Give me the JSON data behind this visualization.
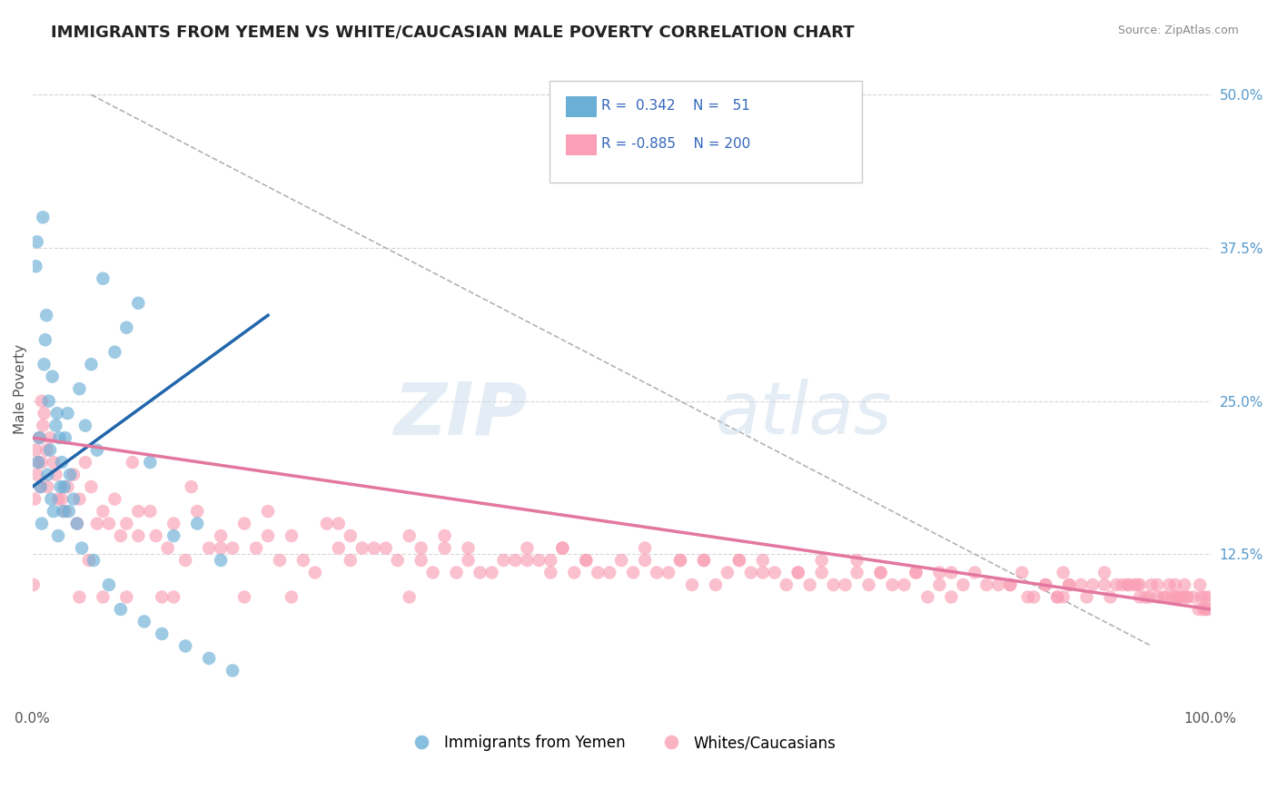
{
  "title": "IMMIGRANTS FROM YEMEN VS WHITE/CAUCASIAN MALE POVERTY CORRELATION CHART",
  "source": "Source: ZipAtlas.com",
  "xlabel": "",
  "ylabel": "Male Poverty",
  "xlim": [
    0,
    100
  ],
  "ylim": [
    0,
    52
  ],
  "xtick_labels": [
    "0.0%",
    "100.0%"
  ],
  "ytick_right_labels": [
    "12.5%",
    "25.0%",
    "37.5%",
    "50.0%"
  ],
  "ytick_right_values": [
    12.5,
    25.0,
    37.5,
    50.0
  ],
  "legend_entries": [
    {
      "label": "Immigrants from Yemen",
      "color": "#a8c8f0",
      "R": "0.342",
      "N": "51"
    },
    {
      "label": "Whites/Caucasians",
      "color": "#f4a0b0",
      "R": "-0.885",
      "N": "200"
    }
  ],
  "blue_scatter_x": [
    0.5,
    0.6,
    0.7,
    0.8,
    1.0,
    1.2,
    1.3,
    1.4,
    1.5,
    1.6,
    1.8,
    2.0,
    2.2,
    2.4,
    2.5,
    2.6,
    2.8,
    3.0,
    3.2,
    3.5,
    4.0,
    4.5,
    5.0,
    5.5,
    6.0,
    7.0,
    8.0,
    9.0,
    10.0,
    12.0,
    14.0,
    16.0,
    0.3,
    0.4,
    0.9,
    1.1,
    1.7,
    2.1,
    2.3,
    2.7,
    3.1,
    3.8,
    4.2,
    5.2,
    6.5,
    7.5,
    9.5,
    11.0,
    13.0,
    15.0,
    17.0
  ],
  "blue_scatter_y": [
    20,
    22,
    18,
    15,
    28,
    32,
    19,
    25,
    21,
    17,
    16,
    23,
    14,
    18,
    20,
    16,
    22,
    24,
    19,
    17,
    26,
    23,
    28,
    21,
    35,
    29,
    31,
    33,
    20,
    14,
    15,
    12,
    36,
    38,
    40,
    30,
    27,
    24,
    22,
    18,
    16,
    15,
    13,
    12,
    10,
    8,
    7,
    6,
    5,
    4,
    3
  ],
  "pink_scatter_x": [
    0.3,
    0.4,
    0.5,
    0.6,
    0.7,
    0.8,
    0.9,
    1.0,
    1.2,
    1.5,
    1.8,
    2.0,
    2.5,
    3.0,
    3.5,
    4.0,
    4.5,
    5.0,
    6.0,
    7.0,
    8.0,
    9.0,
    10.0,
    12.0,
    14.0,
    16.0,
    18.0,
    20.0,
    22.0,
    25.0,
    27.0,
    30.0,
    32.0,
    35.0,
    37.0,
    40.0,
    42.0,
    45.0,
    47.0,
    50.0,
    52.0,
    55.0,
    57.0,
    60.0,
    62.0,
    65.0,
    67.0,
    70.0,
    72.0,
    75.0,
    77.0,
    80.0,
    82.0,
    84.0,
    86.0,
    88.0,
    89.0,
    90.0,
    91.0,
    92.0,
    93.0,
    94.0,
    94.5,
    95.0,
    95.5,
    96.0,
    96.5,
    97.0,
    97.5,
    98.0,
    98.5,
    99.0,
    99.2,
    99.4,
    99.6,
    99.8,
    1.3,
    2.8,
    6.5,
    10.5,
    15.0,
    19.0,
    23.0,
    28.0,
    33.0,
    38.0,
    43.0,
    48.0,
    53.0,
    58.0,
    63.0,
    68.0,
    73.0,
    78.0,
    83.0,
    87.0,
    91.5,
    93.5,
    96.8,
    99.9,
    0.2,
    3.8,
    7.5,
    11.5,
    16.0,
    21.0,
    26.0,
    31.0,
    36.0,
    41.0,
    46.0,
    51.0,
    56.0,
    61.0,
    66.0,
    71.0,
    76.0,
    81.0,
    85.0,
    89.5,
    92.5,
    94.8,
    97.2,
    99.5,
    4.8,
    13.0,
    24.0,
    34.0,
    44.0,
    54.0,
    64.0,
    74.0,
    84.5,
    91.0,
    96.2,
    0.8,
    2.2,
    5.5,
    9.0,
    17.0,
    27.0,
    39.0,
    49.0,
    59.0,
    69.0,
    79.0,
    87.5,
    93.0,
    97.5,
    8.0,
    29.0,
    52.0,
    75.0,
    88.0,
    95.5,
    18.0,
    42.0,
    65.0,
    86.0,
    98.0,
    12.0,
    37.0,
    62.0,
    83.0,
    97.0,
    22.0,
    47.0,
    70.0,
    93.8,
    32.0,
    57.0,
    78.0,
    99.1,
    11.0,
    44.0,
    72.0,
    97.8,
    6.0,
    33.0,
    60.0,
    87.5,
    0.1,
    4.0,
    8.5,
    13.5,
    20.0,
    26.0,
    35.0,
    45.0,
    55.0,
    67.0,
    77.0,
    87.0,
    94.0,
    98.5
  ],
  "pink_scatter_y": [
    21,
    19,
    20,
    22,
    18,
    25,
    23,
    24,
    21,
    22,
    20,
    19,
    17,
    18,
    19,
    17,
    20,
    18,
    16,
    17,
    15,
    16,
    16,
    15,
    16,
    14,
    15,
    14,
    14,
    15,
    14,
    13,
    14,
    13,
    13,
    12,
    13,
    13,
    12,
    12,
    13,
    12,
    12,
    12,
    12,
    11,
    12,
    12,
    11,
    11,
    11,
    11,
    10,
    11,
    10,
    10,
    10,
    10,
    11,
    10,
    10,
    10,
    9,
    10,
    9,
    9,
    10,
    9,
    9,
    9,
    9,
    8,
    9,
    8,
    8,
    8,
    18,
    16,
    15,
    14,
    13,
    13,
    12,
    13,
    12,
    11,
    12,
    11,
    11,
    10,
    11,
    10,
    10,
    9,
    10,
    9,
    9,
    10,
    9,
    9,
    17,
    15,
    14,
    13,
    13,
    12,
    13,
    12,
    11,
    12,
    11,
    11,
    10,
    11,
    10,
    10,
    9,
    10,
    9,
    9,
    10,
    9,
    9,
    9,
    12,
    12,
    11,
    11,
    11,
    11,
    10,
    10,
    9,
    10,
    9,
    20,
    17,
    15,
    14,
    13,
    12,
    11,
    11,
    11,
    10,
    10,
    9,
    10,
    9,
    9,
    13,
    12,
    11,
    10,
    10,
    9,
    12,
    11,
    10,
    9,
    9,
    12,
    11,
    10,
    10,
    9,
    12,
    11,
    10,
    9,
    12,
    11,
    10,
    9,
    12,
    11,
    10,
    9,
    13,
    12,
    11,
    10,
    9,
    20,
    18,
    16,
    15,
    14,
    13,
    12,
    11,
    10,
    9,
    9
  ],
  "blue_trend": {
    "x_start": 0,
    "x_end": 20,
    "y_start": 18,
    "y_end": 32
  },
  "pink_trend": {
    "x_start": 0,
    "x_end": 100,
    "y_start": 22,
    "y_end": 8
  },
  "diagonal_dashed": {
    "x_start": 5,
    "y_start": 50,
    "x_end": 95,
    "y_end": 5
  },
  "background_color": "#ffffff",
  "grid_color": "#d8d8d8",
  "blue_color": "#6baed6",
  "pink_color": "#fa9fb5",
  "blue_trend_color": "#2166ac",
  "pink_trend_color": "#e377a0",
  "title_fontsize": 13,
  "axis_label_fontsize": 11
}
